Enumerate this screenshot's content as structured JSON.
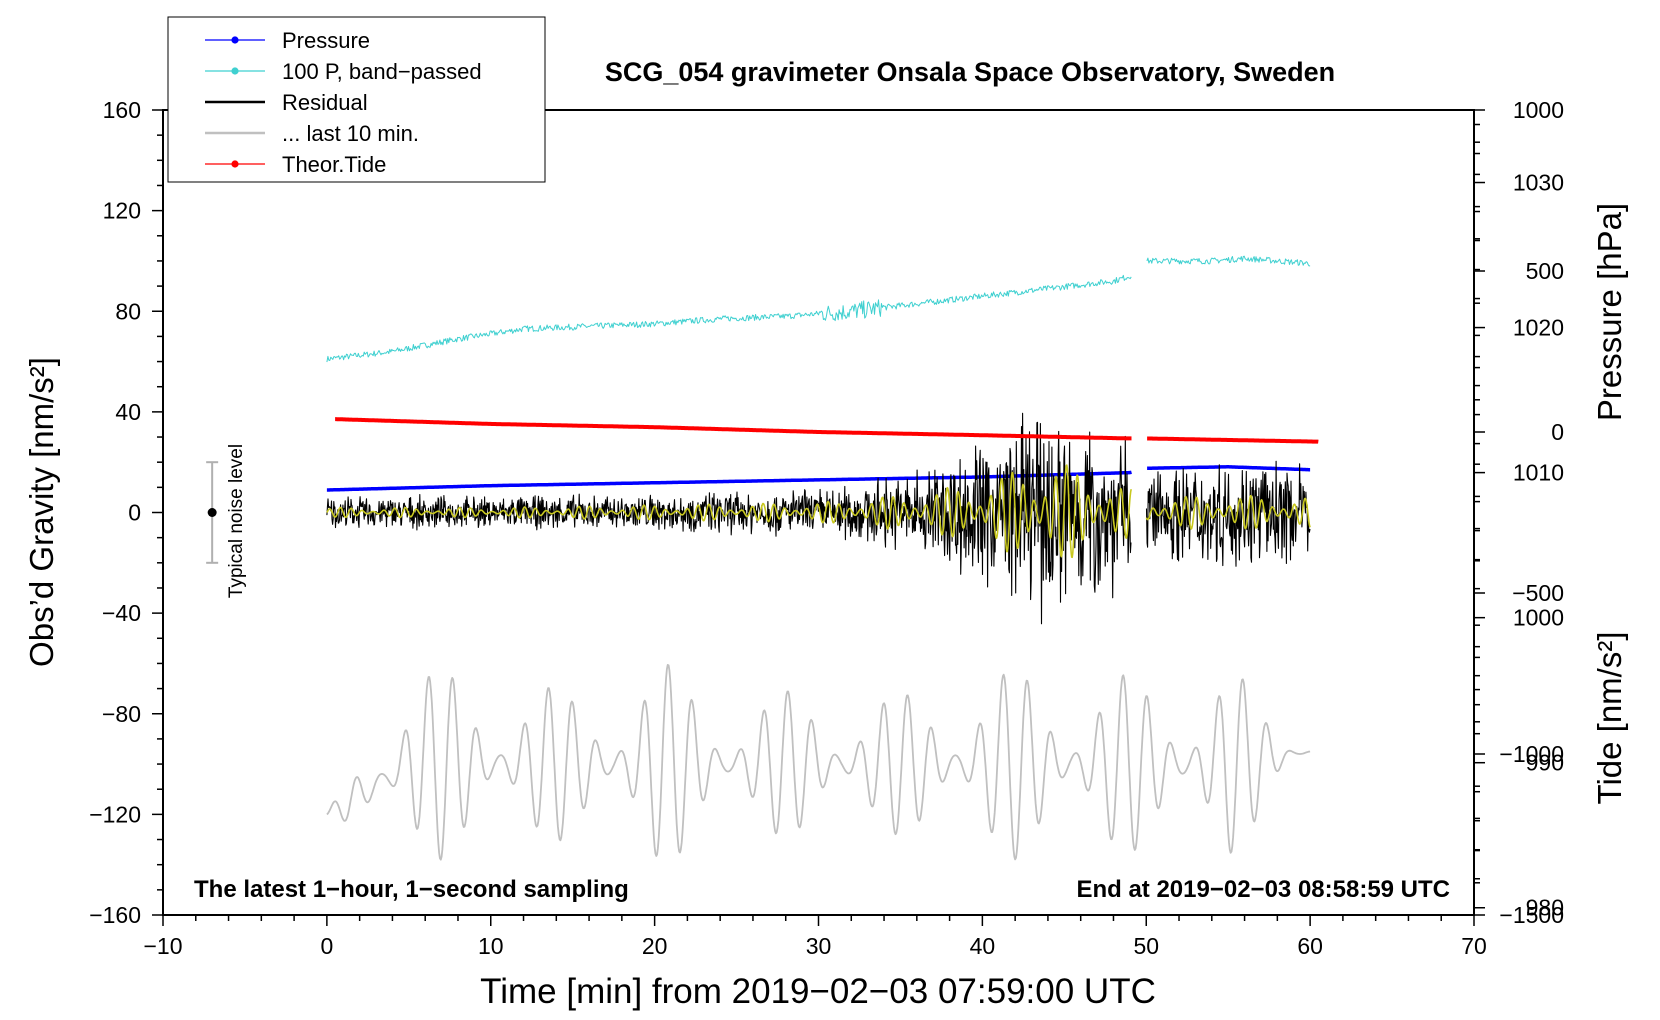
{
  "chart_data": {
    "type": "line",
    "title": "SCG_054 gravimeter Onsala Space Observatory, Sweden",
    "xlabel": "Time [min] from 2019−02−03 07:59:00 UTC",
    "ylabel_left": "Obs’d Gravity [nm/s²]",
    "ylabel_right_top": "Pressure [hPa]",
    "ylabel_right_bottom": "Tide [nm/s²]",
    "xlim": [
      -10,
      70
    ],
    "ylim": [
      -160,
      160
    ],
    "pressure_lim": [
      979.5,
      1035.0
    ],
    "tide_lim": [
      -1500,
      1000
    ],
    "x_ticks": [
      "−10",
      "0",
      "10",
      "20",
      "30",
      "40",
      "50",
      "60",
      "70"
    ],
    "x_tick_values": [
      -10,
      0,
      10,
      20,
      30,
      40,
      50,
      60,
      70
    ],
    "y_ticks": [
      "160",
      "120",
      "80",
      "40",
      "0",
      "−40",
      "−80",
      "−120",
      "−160"
    ],
    "y_tick_values": [
      160,
      120,
      80,
      40,
      0,
      -40,
      -80,
      -120,
      -160
    ],
    "pressure_ticks": [
      "1030",
      "1020",
      "1010",
      "1000",
      "990",
      "980"
    ],
    "pressure_tick_values": [
      1030,
      1020,
      1010,
      1000,
      990,
      980
    ],
    "tide_ticks": [
      "1000",
      "500",
      "0",
      "−500",
      "−1000",
      "−1500"
    ],
    "tide_tick_values": [
      1000,
      500,
      0,
      -500,
      -1000,
      -1500
    ],
    "legend": [
      {
        "label": "Pressure",
        "color": "#0000ff",
        "marker": true
      },
      {
        "label": "100 P, band−passed",
        "color": "#3fd0d0",
        "marker": true
      },
      {
        "label": "Residual",
        "color": "#000000",
        "marker": false
      },
      {
        "label": "... last 10 min.",
        "color": "#c0c0c0",
        "marker": false
      },
      {
        "label": "Theor.Tide",
        "color": "#ff0000",
        "marker": true
      }
    ],
    "annotation_left": "The latest 1−hour, 1−second sampling",
    "annotation_right": "End at 2019−02−03 08:58:59 UTC",
    "noise_label": "Typical noise level",
    "noise_bar": {
      "x": -7,
      "center": 0,
      "half_range": 20
    },
    "series": [
      {
        "name": "Pressure",
        "axis": "pressure",
        "color": "#0000ff",
        "x": [
          0,
          10,
          20,
          30,
          40,
          49,
          50,
          55,
          60
        ],
        "values": [
          1008.8,
          1009.1,
          1009.3,
          1009.5,
          1009.7,
          1010.0,
          1010.3,
          1010.4,
          1010.2
        ]
      },
      {
        "name": "100 P, band−passed",
        "axis": "gravity",
        "color": "#3fd0d0",
        "x": [
          0,
          4,
          8,
          12,
          16,
          20,
          24,
          28,
          32,
          36,
          40,
          44,
          48,
          49,
          50,
          52,
          54,
          56,
          58,
          60
        ],
        "values": [
          61,
          64,
          69,
          73,
          74,
          75,
          77,
          78,
          80,
          83,
          86,
          89,
          92,
          94,
          100,
          100,
          100,
          101,
          100,
          99
        ]
      },
      {
        "name": "Residual",
        "axis": "gravity",
        "color": "#000000",
        "x": [
          0,
          10,
          20,
          30,
          35,
          40,
          44,
          48,
          49,
          50,
          55,
          60
        ],
        "values": [
          0,
          0,
          0,
          0,
          0,
          0,
          0,
          0,
          0,
          0,
          0,
          0
        ],
        "envelope": [
          6,
          6,
          7,
          9,
          14,
          28,
          40,
          30,
          26,
          18,
          20,
          17
        ]
      },
      {
        "name": "Residual (filtered)",
        "axis": "gravity",
        "color": "#c8c820",
        "x": [
          0,
          10,
          20,
          30,
          35,
          40,
          44,
          48,
          49,
          50,
          55,
          60
        ],
        "values": [
          0,
          0,
          0,
          0,
          0,
          0,
          0,
          0,
          0,
          0,
          0,
          0
        ],
        "envelope": [
          2,
          2,
          3,
          4,
          7,
          12,
          22,
          12,
          10,
          6,
          7,
          6
        ]
      },
      {
        "name": "... last 10 min.",
        "axis": "gravity",
        "color": "#c0c0c0",
        "x": [
          0,
          5,
          10,
          15,
          20,
          25,
          30,
          35,
          40,
          45,
          50,
          55,
          60
        ],
        "values": [
          -120,
          -100,
          -100,
          -100,
          -100,
          -100,
          -100,
          -100,
          -100,
          -100,
          -100,
          -100,
          -95
        ],
        "envelope": [
          0,
          40,
          35,
          30,
          42,
          28,
          30,
          28,
          38,
          38,
          35,
          40,
          0
        ]
      },
      {
        "name": "Theor.Tide",
        "axis": "tide",
        "color": "#ff0000",
        "x": [
          0.5,
          10,
          20,
          30,
          40,
          49,
          50,
          60.5
        ],
        "values": [
          40,
          25,
          15,
          0,
          -10,
          -20,
          -20,
          -30
        ]
      }
    ]
  }
}
